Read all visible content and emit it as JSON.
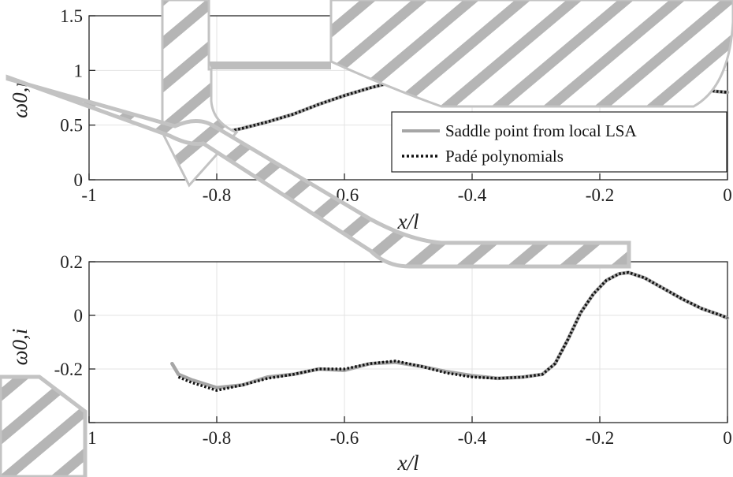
{
  "chart_data": [
    {
      "type": "line",
      "xlabel": "x/l",
      "ylabel": "ω0,r",
      "xlim": [
        -1,
        0
      ],
      "ylim": [
        0,
        1.5
      ],
      "xticks": [
        -1,
        -0.8,
        -0.6,
        -0.4,
        -0.2,
        0
      ],
      "yticks": [
        0,
        0.5,
        1,
        1.5
      ],
      "xtick_labels": [
        "-1",
        "-0.8",
        "-0.6",
        "-0.4",
        "-0.2",
        "0"
      ],
      "ytick_labels": [
        "0",
        "0.5",
        "1",
        "1.5"
      ],
      "grid": true,
      "legend_position": "middle-right",
      "series": [
        {
          "name": "Saddle point from local LSA",
          "color": "#a6a6a6",
          "style": "solid",
          "x": [
            -0.87,
            -0.84,
            -0.8,
            -0.76,
            -0.72,
            -0.68,
            -0.64,
            -0.6,
            -0.56,
            -0.52,
            -0.48,
            -0.44,
            -0.4,
            -0.36,
            -0.32,
            -0.28,
            -0.24,
            -0.2,
            -0.17,
            -0.14,
            -0.11,
            -0.08,
            -0.05,
            -0.02,
            0
          ],
          "y": [
            0.37,
            0.38,
            0.42,
            0.47,
            0.53,
            0.6,
            0.69,
            0.77,
            0.84,
            0.9,
            0.94,
            0.98,
            1.03,
            1.08,
            1.14,
            1.22,
            1.31,
            1.38,
            1.35,
            1.26,
            1.1,
            0.93,
            0.84,
            0.81,
            0.8
          ]
        },
        {
          "name": "Padé polynomials",
          "color": "#111111",
          "style": "dotted",
          "x": [
            -0.87,
            -0.84,
            -0.8,
            -0.76,
            -0.72,
            -0.68,
            -0.64,
            -0.6,
            -0.56,
            -0.52,
            -0.48,
            -0.44,
            -0.4,
            -0.36,
            -0.32,
            -0.28,
            -0.24,
            -0.2,
            -0.17,
            -0.14,
            -0.11,
            -0.08,
            -0.05,
            -0.02,
            0
          ],
          "y": [
            0.37,
            0.38,
            0.42,
            0.47,
            0.53,
            0.6,
            0.69,
            0.77,
            0.84,
            0.9,
            0.94,
            0.98,
            1.03,
            1.08,
            1.14,
            1.22,
            1.31,
            1.38,
            1.35,
            1.26,
            1.1,
            0.93,
            0.84,
            0.81,
            0.8
          ]
        }
      ]
    },
    {
      "type": "line",
      "xlabel": "x/l",
      "ylabel": "ω0,i",
      "xlim": [
        -1,
        0
      ],
      "ylim": [
        -0.4,
        0.2
      ],
      "xticks": [
        -1,
        -0.8,
        -0.6,
        -0.4,
        -0.2,
        0
      ],
      "yticks": [
        -0.4,
        -0.2,
        0,
        0.2
      ],
      "xtick_labels": [
        "-1",
        "-0.8",
        "-0.6",
        "-0.4",
        "-0.2",
        "0"
      ],
      "ytick_labels": [
        "-0.4",
        "-0.2",
        "0",
        "0.2"
      ],
      "grid": true,
      "series": [
        {
          "name": "Saddle point from local LSA",
          "color": "#a6a6a6",
          "style": "solid",
          "x": [
            -0.87,
            -0.86,
            -0.84,
            -0.8,
            -0.76,
            -0.72,
            -0.68,
            -0.64,
            -0.6,
            -0.56,
            -0.52,
            -0.48,
            -0.44,
            -0.4,
            -0.36,
            -0.32,
            -0.29,
            -0.27,
            -0.25,
            -0.23,
            -0.21,
            -0.19,
            -0.17,
            -0.155,
            -0.13,
            -0.1,
            -0.07,
            -0.04,
            -0.01,
            0
          ],
          "y": [
            -0.18,
            -0.22,
            -0.24,
            -0.27,
            -0.26,
            -0.23,
            -0.22,
            -0.2,
            -0.205,
            -0.18,
            -0.175,
            -0.19,
            -0.21,
            -0.225,
            -0.235,
            -0.23,
            -0.22,
            -0.18,
            -0.09,
            0.01,
            0.08,
            0.13,
            0.155,
            0.16,
            0.14,
            0.1,
            0.06,
            0.025,
            0.0,
            -0.01
          ]
        },
        {
          "name": "Padé polynomials",
          "color": "#111111",
          "style": "dotted",
          "x": [
            -0.86,
            -0.84,
            -0.8,
            -0.76,
            -0.72,
            -0.68,
            -0.64,
            -0.6,
            -0.56,
            -0.52,
            -0.48,
            -0.44,
            -0.4,
            -0.36,
            -0.32,
            -0.29,
            -0.27,
            -0.25,
            -0.23,
            -0.21,
            -0.19,
            -0.17,
            -0.155,
            -0.13,
            -0.1,
            -0.07,
            -0.04,
            -0.01,
            0
          ],
          "y": [
            -0.23,
            -0.25,
            -0.28,
            -0.26,
            -0.235,
            -0.22,
            -0.2,
            -0.2,
            -0.18,
            -0.17,
            -0.19,
            -0.215,
            -0.23,
            -0.235,
            -0.23,
            -0.22,
            -0.18,
            -0.09,
            0.01,
            0.08,
            0.13,
            0.155,
            0.16,
            0.14,
            0.1,
            0.06,
            0.025,
            0.0,
            -0.01
          ]
        }
      ]
    }
  ]
}
